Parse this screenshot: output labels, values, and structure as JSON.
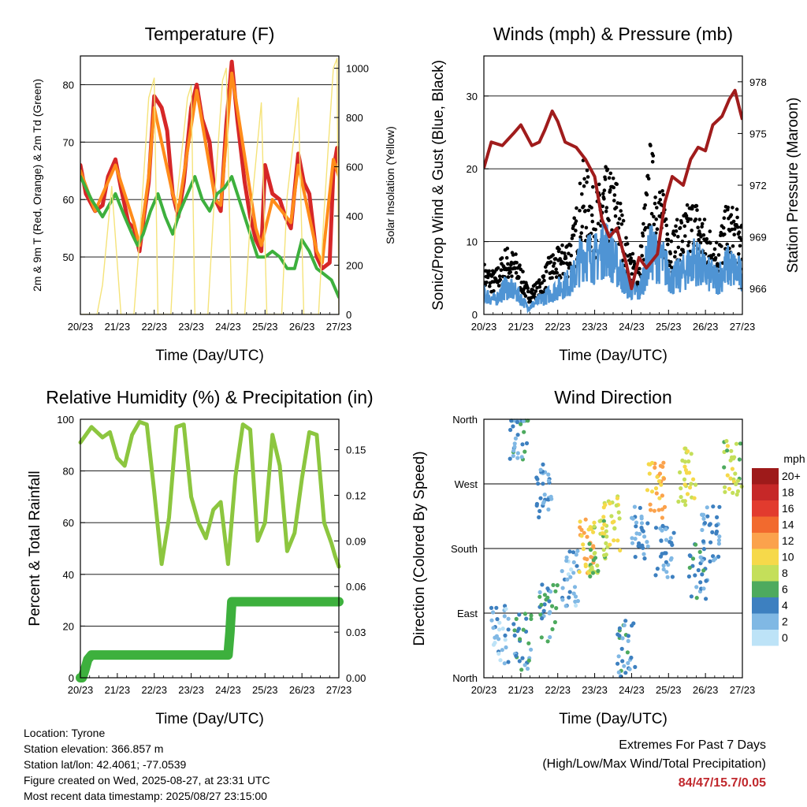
{
  "charts": [
    {
      "id": "temp",
      "chart_data": {
        "type": "line",
        "title": "Temperature (F)",
        "xlabel": "Time (Day/UTC)",
        "ylabel": "2m & 9m T (Red, Orange) & 2m Td (Green)",
        "y2label": "Solar Insolation (Yellow)",
        "x_ticks": [
          "20/23",
          "21/23",
          "22/23",
          "23/23",
          "24/23",
          "25/23",
          "26/23",
          "27/23"
        ],
        "xlim": [
          0,
          7
        ],
        "ylim": [
          40,
          85
        ],
        "y_ticks": [
          50,
          60,
          70,
          80
        ],
        "y2lim": [
          0,
          1050
        ],
        "y2_ticks": [
          0,
          200,
          400,
          600,
          800,
          1000
        ],
        "grid": true,
        "series": [
          {
            "name": "2m T",
            "color": "#d62728",
            "axis": "left",
            "x": [
              0,
              0.15,
              0.4,
              0.6,
              0.75,
              0.95,
              1.1,
              1.3,
              1.45,
              1.6,
              1.72,
              1.85,
              2.0,
              2.2,
              2.35,
              2.5,
              2.65,
              2.8,
              3.0,
              3.15,
              3.3,
              3.5,
              3.65,
              3.8,
              3.95,
              4.1,
              4.25,
              4.45,
              4.6,
              4.75,
              4.9,
              5.0,
              5.2,
              5.4,
              5.55,
              5.7,
              5.9,
              6.05,
              6.2,
              6.4,
              6.55,
              6.75,
              6.85,
              6.95,
              7.0
            ],
            "y": [
              66,
              61,
              58,
              59,
              64,
              67,
              62,
              56,
              55,
              51,
              57,
              63,
              78,
              76,
              72,
              61,
              57,
              63,
              76,
              80,
              74,
              70,
              60,
              58,
              73,
              84,
              74,
              63,
              57,
              53,
              51,
              66,
              61,
              60,
              57,
              55,
              68,
              63,
              61,
              50,
              48,
              49,
              65,
              69,
              66
            ]
          },
          {
            "name": "9m T",
            "color": "#ff8c1a",
            "axis": "left",
            "x": [
              0,
              0.4,
              0.95,
              1.45,
              1.6,
              1.85,
              2.0,
              2.5,
              2.65,
              3.15,
              3.65,
              3.8,
              4.1,
              4.75,
              4.9,
              5.2,
              5.7,
              5.9,
              6.4,
              6.55,
              6.85,
              7.0
            ],
            "y": [
              65,
              58,
              66,
              56,
              52,
              64,
              76,
              61,
              58,
              79,
              60,
              59,
              82,
              55,
              52,
              60,
              56,
              66,
              51,
              49,
              67,
              64
            ]
          },
          {
            "name": "2m Td",
            "color": "#3db03d",
            "axis": "left",
            "x": [
              0,
              0.3,
              0.6,
              0.95,
              1.2,
              1.4,
              1.55,
              1.7,
              1.9,
              2.1,
              2.3,
              2.5,
              2.7,
              2.9,
              3.1,
              3.3,
              3.5,
              3.7,
              3.9,
              4.1,
              4.3,
              4.6,
              4.8,
              5.0,
              5.2,
              5.4,
              5.6,
              5.8,
              6.0,
              6.2,
              6.4,
              6.6,
              6.8,
              7.0
            ],
            "y": [
              64,
              60,
              57,
              61,
              57,
              54,
              52,
              54,
              58,
              61,
              57,
              54,
              58,
              61,
              64,
              60,
              58,
              61,
              62,
              64,
              60,
              54,
              50,
              50,
              51,
              50,
              48,
              48,
              53,
              51,
              48,
              47,
              46,
              43
            ]
          },
          {
            "name": "Solar",
            "color": "#f5e37a",
            "axis": "right",
            "x": [
              0,
              0.45,
              0.6,
              0.85,
              1.1,
              1.45,
              1.6,
              1.85,
              2.0,
              2.1,
              2.45,
              2.6,
              2.9,
              3.0,
              3.1,
              3.45,
              3.6,
              3.85,
              3.95,
              4.1,
              4.45,
              4.6,
              4.9,
              5.05,
              5.45,
              5.6,
              5.9,
              6.05,
              6.45,
              6.6,
              6.85,
              6.95,
              7.0
            ],
            "y": [
              0,
              0,
              120,
              520,
              0,
              0,
              300,
              880,
              960,
              0,
              0,
              450,
              880,
              930,
              0,
              0,
              400,
              950,
              1000,
              0,
              0,
              380,
              860,
              0,
              0,
              480,
              880,
              0,
              0,
              420,
              1000,
              1040,
              0
            ]
          }
        ]
      }
    },
    {
      "id": "wind",
      "chart_data": {
        "type": "line",
        "title": "Winds (mph) & Pressure (mb)",
        "xlabel": "Time (Day/UTC)",
        "ylabel": "Sonic/Prop Wind & Gust (Blue, Black)",
        "y2label": "Station Pressure (Maroon)",
        "x_ticks": [
          "20/23",
          "21/23",
          "22/23",
          "23/23",
          "24/23",
          "25/23",
          "26/23",
          "27/23"
        ],
        "xlim": [
          0,
          7
        ],
        "ylim": [
          0,
          35.5
        ],
        "y_ticks": [
          0,
          10,
          20,
          30
        ],
        "y2lim": [
          964.5,
          979.5
        ],
        "y2_ticks": [
          966,
          969,
          972,
          975,
          978
        ],
        "grid": true,
        "series": [
          {
            "name": "Wind",
            "color": "#4f94d4",
            "axis": "left",
            "x": [
              0,
              0.3,
              0.6,
              0.9,
              1.2,
              1.5,
              1.8,
              2.1,
              2.4,
              2.7,
              3.0,
              3.3,
              3.6,
              3.9,
              4.2,
              4.5,
              4.8,
              5.1,
              5.4,
              5.7,
              6.0,
              6.3,
              6.6,
              6.9,
              7.0
            ],
            "y": [
              3,
              2,
              4,
              3,
              1,
              2,
              3,
              4,
              5,
              9,
              8,
              10,
              7,
              4,
              3,
              9,
              8,
              5,
              6,
              8,
              6,
              5,
              7,
              6,
              5
            ]
          },
          {
            "name": "Gust",
            "color": "#000000",
            "axis": "left",
            "x": [
              0,
              0.3,
              0.6,
              0.9,
              1.2,
              1.5,
              1.8,
              2.1,
              2.4,
              2.7,
              3.0,
              3.3,
              3.6,
              3.9,
              4.2,
              4.5,
              4.8,
              5.1,
              5.4,
              5.7,
              6.0,
              6.3,
              6.6,
              6.9,
              7.0
            ],
            "y": [
              6,
              5,
              8,
              7,
              3,
              4,
              7,
              8,
              10,
              18,
              14,
              17,
              16,
              8,
              6,
              20,
              15,
              10,
              12,
              14,
              11,
              9,
              13,
              12,
              10
            ]
          },
          {
            "name": "Pressure",
            "color": "#a01c1c",
            "axis": "right",
            "x": [
              0,
              0.2,
              0.5,
              0.8,
              1.0,
              1.3,
              1.5,
              1.65,
              1.85,
              2.0,
              2.2,
              2.5,
              2.75,
              3.0,
              3.2,
              3.4,
              3.6,
              3.85,
              4.0,
              4.2,
              4.4,
              4.7,
              4.9,
              5.1,
              5.4,
              5.6,
              5.8,
              6.0,
              6.2,
              6.45,
              6.65,
              6.8,
              6.95,
              7.0
            ],
            "y": [
              973,
              974.5,
              974.3,
              975,
              975.5,
              974.3,
              974.5,
              975.2,
              976.3,
              975.7,
              974.5,
              974.2,
              973.5,
              972.5,
              970,
              969,
              969.5,
              967.5,
              966,
              967.8,
              967.2,
              968,
              971,
              972.5,
              972,
              973.5,
              974.2,
              974,
              975.5,
              976,
              977,
              977.5,
              976.2,
              975.8
            ]
          }
        ]
      }
    },
    {
      "id": "rh",
      "chart_data": {
        "type": "line",
        "title": "Relative Humidity (%) & Precipitation (in)",
        "xlabel": "Time (Day/UTC)",
        "ylabel": "Percent & Total Rainfall",
        "x_ticks": [
          "20/23",
          "21/23",
          "22/23",
          "23/23",
          "24/23",
          "25/23",
          "26/23",
          "27/23"
        ],
        "xlim": [
          0,
          7
        ],
        "ylim": [
          0,
          100
        ],
        "y_ticks": [
          0,
          20,
          40,
          60,
          80,
          100
        ],
        "y2lim": [
          0,
          0.17
        ],
        "y2_ticks": [
          "0.00",
          "0.03",
          "0.06",
          "0.09",
          "0.12",
          "0.15"
        ],
        "grid": true,
        "series": [
          {
            "name": "RH",
            "color": "#8cc63f",
            "axis": "left",
            "x": [
              0,
              0.3,
              0.6,
              0.8,
              1.0,
              1.2,
              1.4,
              1.6,
              1.8,
              2.0,
              2.2,
              2.4,
              2.6,
              2.8,
              3.0,
              3.2,
              3.4,
              3.6,
              3.8,
              4.0,
              4.2,
              4.4,
              4.6,
              4.8,
              5.0,
              5.2,
              5.4,
              5.6,
              5.8,
              6.0,
              6.2,
              6.4,
              6.6,
              6.8,
              6.9,
              7.0
            ],
            "y": [
              91,
              97,
              93,
              95,
              85,
              82,
              94,
              99,
              98,
              72,
              44,
              62,
              97,
              98,
              70,
              60,
              54,
              65,
              68,
              44,
              78,
              98,
              96,
              53,
              60,
              94,
              82,
              49,
              56,
              77,
              95,
              94,
              60,
              52,
              47,
              43
            ]
          },
          {
            "name": "Precip",
            "color": "#3db03d",
            "axis": "right",
            "x": [
              0,
              0.05,
              0.12,
              0.2,
              0.3,
              3.9,
              4.0,
              4.05,
              4.1,
              7.0
            ],
            "y": [
              0,
              0,
              0.005,
              0.012,
              0.015,
              0.015,
              0.015,
              0.03,
              0.05,
              0.05
            ]
          }
        ]
      }
    },
    {
      "id": "wdir",
      "chart_data": {
        "type": "scatter",
        "title": "Wind Direction",
        "xlabel": "Time (Day/UTC)",
        "ylabel": "Direction (Colored By Speed)",
        "x_ticks": [
          "20/23",
          "21/23",
          "22/23",
          "23/23",
          "24/23",
          "25/23",
          "26/23",
          "27/23"
        ],
        "xlim": [
          0,
          7
        ],
        "ylim": [
          0,
          360
        ],
        "y_ticks": [
          {
            "v": 0,
            "l": "North"
          },
          {
            "v": 90,
            "l": "East"
          },
          {
            "v": 180,
            "l": "South"
          },
          {
            "v": 270,
            "l": "West"
          },
          {
            "v": 360,
            "l": "North"
          }
        ],
        "grid": true,
        "colorbar": {
          "title": "mph",
          "labels": [
            "20+",
            "18",
            "16",
            "14",
            "12",
            "10",
            "8",
            "6",
            "4",
            "2",
            "0"
          ],
          "colors": [
            "#9e1a1a",
            "#c62828",
            "#e23b2e",
            "#f26a2e",
            "#fba24c",
            "#f6d94a",
            "#c4df5a",
            "#4daa5e",
            "#3d80c0",
            "#80b8e4",
            "#bde3f7"
          ]
        },
        "clusters": [
          {
            "x": 0.45,
            "y": 60,
            "speed": 2
          },
          {
            "x": 0.95,
            "y": 340,
            "speed": 4
          },
          {
            "x": 1.05,
            "y": 50,
            "speed": 4
          },
          {
            "x": 1.6,
            "y": 260,
            "speed": 3
          },
          {
            "x": 1.75,
            "y": 90,
            "speed": 4
          },
          {
            "x": 2.35,
            "y": 140,
            "speed": 2
          },
          {
            "x": 2.75,
            "y": 185,
            "speed": 11
          },
          {
            "x": 3.1,
            "y": 180,
            "speed": 7
          },
          {
            "x": 3.45,
            "y": 215,
            "speed": 9
          },
          {
            "x": 3.85,
            "y": 40,
            "speed": 4
          },
          {
            "x": 4.25,
            "y": 200,
            "speed": 3
          },
          {
            "x": 4.65,
            "y": 260,
            "speed": 11
          },
          {
            "x": 4.9,
            "y": 180,
            "speed": 3
          },
          {
            "x": 5.5,
            "y": 280,
            "speed": 9
          },
          {
            "x": 5.8,
            "y": 150,
            "speed": 4
          },
          {
            "x": 6.15,
            "y": 200,
            "speed": 3
          },
          {
            "x": 6.75,
            "y": 290,
            "speed": 8
          }
        ]
      }
    }
  ],
  "info": {
    "location": "Location: Tyrone",
    "elevation": "Station elevation: 366.857 m",
    "latlon": "Station lat/lon: 42.4061; -77.0539",
    "created": "Figure created on Wed, 2025-08-27, at 23:31 UTC",
    "recent": "Most recent data timestamp: 2025/08/27 23:15:00"
  },
  "extremes": {
    "title": "Extremes For Past 7 Days",
    "subtitle": "(High/Low/Max Wind/Total Precipitation)",
    "values": "84/47/15.7/0.05"
  }
}
